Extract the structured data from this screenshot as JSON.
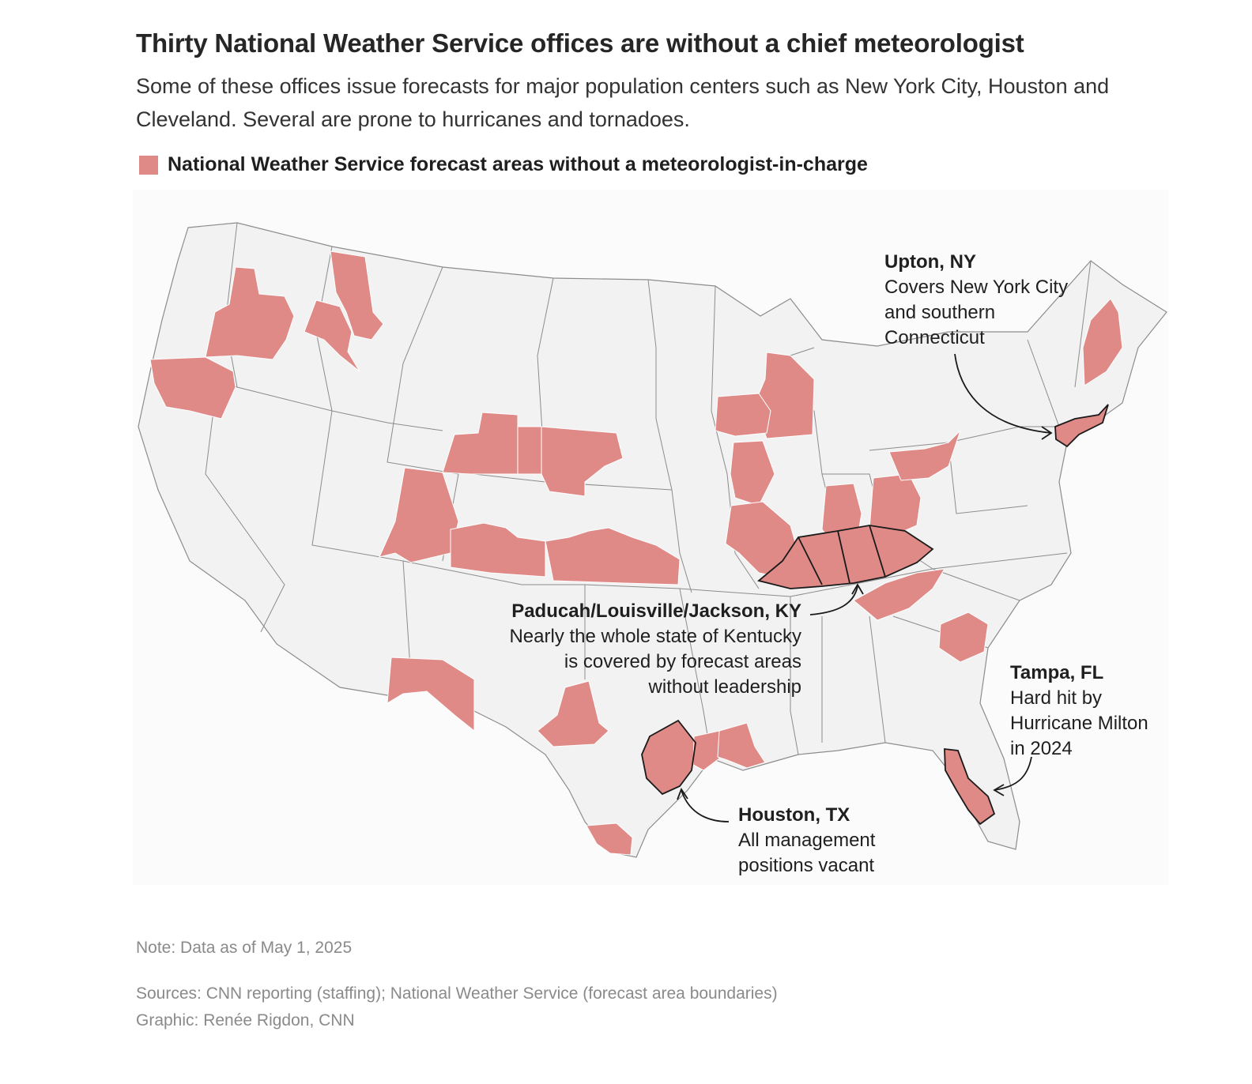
{
  "title": "Thirty National Weather Service offices are without a chief meteorologist",
  "subtitle": "Some of these offices issue forecasts for major population centers such as New York City, Houston and Cleveland. Several are prone to hurricanes and tornadoes.",
  "legend": {
    "label": "National Weather Service forecast areas without a meteorologist-in-charge",
    "color": "#e08a87"
  },
  "colors": {
    "land": "#f2f2f2",
    "border": "#8c8c8c",
    "highlight": "#e08a87",
    "emphasis_outline": "#1a1a1a"
  },
  "annotations": {
    "upton": {
      "heading": "Upton, NY",
      "lines": [
        "Covers New York City",
        "and southern",
        "Connecticut"
      ]
    },
    "kentucky": {
      "heading": "Paducah/Louisville/Jackson, KY",
      "lines": [
        "Nearly the whole state of Kentucky",
        "is covered by forecast areas",
        "without leadership"
      ]
    },
    "tampa": {
      "heading": "Tampa, FL",
      "lines": [
        "Hard hit by",
        "Hurricane Milton",
        "in 2024"
      ]
    },
    "houston": {
      "heading": "Houston, TX",
      "lines": [
        "All management",
        "positions vacant"
      ]
    }
  },
  "footer": {
    "note": "Note: Data as of May 1, 2025",
    "sources": "Sources: CNN reporting (staffing); National Weather Service (forecast area boundaries)",
    "graphic": "Graphic: Renée Rigdon, CNN"
  }
}
